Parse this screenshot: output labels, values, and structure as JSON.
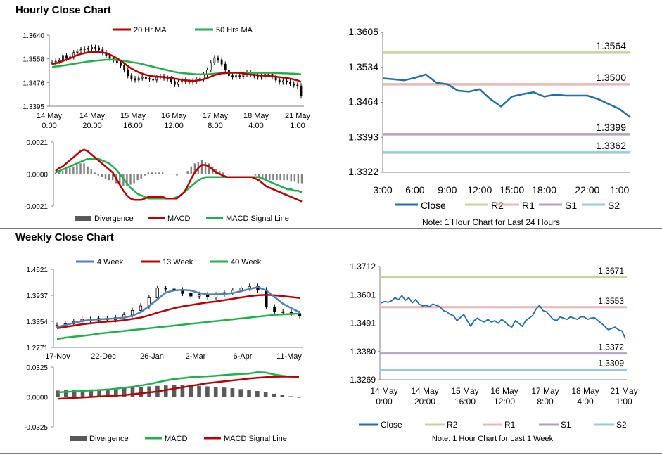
{
  "hourly_section": {
    "title": "Hourly Close Chart"
  },
  "weekly_section": {
    "title": "Weekly Close Chart"
  },
  "colors": {
    "ma20": "#c00000",
    "ma50": "#1fb24a",
    "candle": "#000000",
    "divergence": "#808080",
    "macd": "#c00000",
    "signal": "#1fb24a",
    "close": "#1f6fad",
    "r2": "#c3d69b",
    "r1": "#e6b9b8",
    "s1": "#b3a2c7",
    "s2": "#93cddd",
    "w4": "#4f81bd",
    "w13": "#c00000",
    "w40": "#1fb24a"
  },
  "chart_data": [
    {
      "id": "hourly-candles",
      "type": "candlestick",
      "legend": [
        "20 Hr MA",
        "50 Hrs MA"
      ],
      "y_ticks": [
        "1.3640",
        "1.3558",
        "1.3476",
        "1.3395"
      ],
      "ylim": [
        1.3395,
        1.364
      ],
      "x_ticks": [
        [
          "14 May",
          "0:00"
        ],
        [
          "14 May",
          "20:00"
        ],
        [
          "15 May",
          "16:00"
        ],
        [
          "16 May",
          "12:00"
        ],
        [
          "17 May",
          "8:00"
        ],
        [
          "18 May",
          "4:00"
        ],
        [
          "21 May",
          "1:00"
        ]
      ],
      "close": [
        1.3545,
        1.355,
        1.3553,
        1.357,
        1.356,
        1.3565,
        1.358,
        1.3585,
        1.359,
        1.3592,
        1.3595,
        1.3598,
        1.3596,
        1.359,
        1.358,
        1.357,
        1.356,
        1.3555,
        1.3545,
        1.3535,
        1.352,
        1.35,
        1.349,
        1.3485,
        1.3492,
        1.3496,
        1.349,
        1.3488,
        1.3485,
        1.3495,
        1.3498,
        1.3492,
        1.349,
        1.348,
        1.347,
        1.3478,
        1.3485,
        1.348,
        1.3478,
        1.3482,
        1.3488,
        1.349,
        1.3505,
        1.352,
        1.3545,
        1.3562,
        1.3555,
        1.354,
        1.352,
        1.35,
        1.3495,
        1.35,
        1.3498,
        1.3505,
        1.351,
        1.3505,
        1.35,
        1.3495,
        1.3498,
        1.3505,
        1.3505,
        1.3495,
        1.3485,
        1.3478,
        1.3482,
        1.3478,
        1.3472,
        1.3468,
        1.3465,
        1.343
      ],
      "ma20": [
        1.354,
        1.3543,
        1.3546,
        1.3551,
        1.3556,
        1.356,
        1.3566,
        1.3571,
        1.3575,
        1.3578,
        1.3581,
        1.3582,
        1.3582,
        1.3581,
        1.358,
        1.3578,
        1.3573,
        1.3567,
        1.356,
        1.3552,
        1.3543,
        1.3533,
        1.3525,
        1.3518,
        1.3512,
        1.3507,
        1.3503,
        1.35,
        1.3498,
        1.3497,
        1.3496,
        1.3495,
        1.3494,
        1.3493,
        1.349,
        1.3488,
        1.3486,
        1.3484,
        1.3483,
        1.3482,
        1.3483,
        1.3485,
        1.3488,
        1.3492,
        1.3497,
        1.3502,
        1.3506,
        1.3508,
        1.3509,
        1.351,
        1.3511,
        1.3511,
        1.351,
        1.3508,
        1.3506,
        1.3504,
        1.3503,
        1.3502,
        1.3501,
        1.35,
        1.3499,
        1.3498,
        1.3497,
        1.3495,
        1.3494,
        1.3492,
        1.349,
        1.3487,
        1.3484,
        1.3478
      ],
      "ma50": [
        1.353,
        1.3532,
        1.3533,
        1.3535,
        1.3537,
        1.3539,
        1.3541,
        1.3543,
        1.3545,
        1.3547,
        1.3549,
        1.355,
        1.3552,
        1.3553,
        1.3554,
        1.3555,
        1.3555,
        1.3555,
        1.3554,
        1.3553,
        1.3551,
        1.3549,
        1.3547,
        1.3545,
        1.3543,
        1.354,
        1.3537,
        1.3534,
        1.3531,
        1.3528,
        1.3525,
        1.3522,
        1.3519,
        1.3516,
        1.3513,
        1.3511,
        1.3509,
        1.3508,
        1.3507,
        1.3506,
        1.3505,
        1.3505,
        1.3505,
        1.3505,
        1.3506,
        1.3507,
        1.3508,
        1.3509,
        1.351,
        1.351,
        1.351,
        1.351,
        1.351,
        1.351,
        1.351,
        1.351,
        1.351,
        1.351,
        1.351,
        1.351,
        1.351,
        1.351,
        1.3509,
        1.3509,
        1.3508,
        1.3508,
        1.3507,
        1.3507,
        1.3506,
        1.3505
      ]
    },
    {
      "id": "hourly-macd",
      "type": "bar+line",
      "legend": [
        "Divergence",
        "MACD",
        "MACD Signal Line"
      ],
      "y_ticks": [
        "0.0021",
        "0.0000",
        "-0.0021"
      ],
      "ylim": [
        -0.0021,
        0.0021
      ],
      "macd": [
        0.0002,
        0.0004,
        0.0005,
        0.0007,
        0.0009,
        0.0011,
        0.0013,
        0.0015,
        0.0016,
        0.0015,
        0.0013,
        0.0011,
        0.0009,
        0.0007,
        0.0005,
        0.0003,
        0.0001,
        -0.0003,
        -0.0007,
        -0.0011,
        -0.0014,
        -0.0016,
        -0.0017,
        -0.0017,
        -0.0017,
        -0.0016,
        -0.0015,
        -0.0015,
        -0.0015,
        -0.0015,
        -0.0015,
        -0.0016,
        -0.0016,
        -0.0016,
        -0.0016,
        -0.0014,
        -0.0012,
        -0.0008,
        -0.0003,
        0.0001,
        0.0004,
        0.0006,
        0.0006,
        0.0005,
        0.0003,
        0.0001,
        0.0,
        -0.0001,
        -0.0002,
        -0.0002,
        -0.0002,
        -0.0002,
        -0.0002,
        -0.0002,
        -0.0002,
        -0.0002,
        -0.0003,
        -0.0004,
        -0.0006,
        -0.0008,
        -0.0009,
        -0.001,
        -0.0011,
        -0.0012,
        -0.0013,
        -0.0014,
        -0.0015,
        -0.0016,
        -0.0017,
        -0.0018
      ],
      "signal": [
        0.0001,
        0.0002,
        0.0003,
        0.0004,
        0.0005,
        0.0006,
        0.0007,
        0.0008,
        0.0009,
        0.001,
        0.001,
        0.001,
        0.001,
        0.0009,
        0.0008,
        0.0007,
        0.0005,
        0.0003,
        0.0,
        -0.0003,
        -0.0006,
        -0.0009,
        -0.0011,
        -0.0013,
        -0.0014,
        -0.0015,
        -0.0016,
        -0.0016,
        -0.0016,
        -0.0016,
        -0.0016,
        -0.0016,
        -0.0016,
        -0.0016,
        -0.0015,
        -0.0014,
        -0.0012,
        -0.001,
        -0.0008,
        -0.0006,
        -0.0004,
        -0.0003,
        -0.0002,
        -0.0002,
        -0.0002,
        -0.0002,
        -0.0002,
        -0.0002,
        -0.0002,
        -0.0002,
        -0.0002,
        -0.0002,
        -0.0002,
        -0.0002,
        -0.0002,
        -0.0002,
        -0.0002,
        -0.0002,
        -0.0003,
        -0.0004,
        -0.0005,
        -0.0006,
        -0.0007,
        -0.0008,
        -0.0009,
        -0.001,
        -0.001,
        -0.0011,
        -0.0011,
        -0.0012
      ]
    },
    {
      "id": "hourly-close",
      "type": "line",
      "legend": [
        "Close",
        "R2",
        "R1",
        "S1",
        "S2"
      ],
      "note": "Note: 1 Hour Chart for Last 24 Hours",
      "y_ticks": [
        "1.3605",
        "1.3534",
        "1.3464",
        "1.3393",
        "1.3322"
      ],
      "ylim": [
        1.3322,
        1.3605
      ],
      "x_ticks": [
        "3:00",
        "6:00",
        "9:00",
        "12:00",
        "15:00",
        "18:00",
        "22:00",
        "1:00"
      ],
      "x_tick_hours": [
        3,
        6,
        9,
        12,
        15,
        18,
        22,
        25
      ],
      "x_hours": [
        3,
        4,
        5,
        6,
        7,
        8,
        9,
        10,
        11,
        12,
        13,
        14,
        15,
        16,
        17,
        18,
        19,
        20,
        21,
        22,
        23,
        24,
        25,
        26
      ],
      "close": [
        1.3512,
        1.351,
        1.3508,
        1.3513,
        1.352,
        1.3503,
        1.35,
        1.3487,
        1.3485,
        1.349,
        1.347,
        1.3455,
        1.3475,
        1.348,
        1.3484,
        1.3475,
        1.3479,
        1.3477,
        1.3477,
        1.3477,
        1.347,
        1.346,
        1.345,
        1.3433
      ],
      "levels": [
        {
          "name": "R2",
          "value": 1.3564,
          "label": "1.3564"
        },
        {
          "name": "R1",
          "value": 1.35,
          "label": "1.3500"
        },
        {
          "name": "S1",
          "value": 1.3399,
          "label": "1.3399"
        },
        {
          "name": "S2",
          "value": 1.3362,
          "label": "1.3362"
        }
      ]
    },
    {
      "id": "weekly-candles",
      "type": "candlestick",
      "legend": [
        "4 Week",
        "13 Week",
        "40 Week"
      ],
      "y_ticks": [
        "1.4521",
        "1.3937",
        "1.3354",
        "1.2771"
      ],
      "ylim": [
        1.2771,
        1.4521
      ],
      "x_ticks": [
        "17-Nov",
        "22-Dec",
        "26-Jan",
        "2-Mar",
        "6-Apr",
        "11-May"
      ],
      "close": [
        1.327,
        1.33,
        1.335,
        1.34,
        1.338,
        1.342,
        1.339,
        1.344,
        1.35,
        1.36,
        1.37,
        1.388,
        1.41,
        1.408,
        1.406,
        1.398,
        1.392,
        1.396,
        1.39,
        1.395,
        1.4,
        1.405,
        1.41,
        1.414,
        1.406,
        1.368,
        1.357,
        1.356,
        1.353,
        1.348
      ],
      "w4": [
        1.323,
        1.327,
        1.332,
        1.336,
        1.339,
        1.34,
        1.341,
        1.342,
        1.344,
        1.348,
        1.356,
        1.37,
        1.385,
        1.4,
        1.405,
        1.406,
        1.405,
        1.399,
        1.396,
        1.396,
        1.397,
        1.399,
        1.403,
        1.408,
        1.412,
        1.405,
        1.39,
        1.375,
        1.365,
        1.356
      ],
      "w13": [
        1.32,
        1.323,
        1.326,
        1.329,
        1.331,
        1.333,
        1.335,
        1.336,
        1.338,
        1.341,
        1.344,
        1.349,
        1.355,
        1.36,
        1.365,
        1.369,
        1.372,
        1.375,
        1.378,
        1.38,
        1.383,
        1.386,
        1.389,
        1.392,
        1.394,
        1.395,
        1.394,
        1.392,
        1.39,
        1.388
      ],
      "w40": [
        1.296,
        1.299,
        1.301,
        1.303,
        1.305,
        1.308,
        1.31,
        1.312,
        1.314,
        1.316,
        1.318,
        1.32,
        1.322,
        1.324,
        1.326,
        1.328,
        1.33,
        1.332,
        1.334,
        1.336,
        1.338,
        1.34,
        1.342,
        1.344,
        1.346,
        1.348,
        1.35,
        1.351,
        1.352,
        1.353
      ]
    },
    {
      "id": "weekly-macd",
      "type": "bar+line",
      "legend": [
        "Divergence",
        "MACD",
        "MACD Signal Line"
      ],
      "y_ticks": [
        "0.0325",
        "0.0000",
        "-0.0325"
      ],
      "ylim": [
        -0.0325,
        0.0325
      ],
      "divergence": [
        0.007,
        0.0075,
        0.0078,
        0.008,
        0.0082,
        0.0085,
        0.009,
        0.0095,
        0.01,
        0.0105,
        0.011,
        0.0115,
        0.012,
        0.0125,
        0.0128,
        0.013,
        0.0128,
        0.0122,
        0.0115,
        0.011,
        0.0102,
        0.0095,
        0.0085,
        0.0075,
        0.0065,
        0.005,
        0.0035,
        0.002,
        0.0008,
        -0.0008
      ],
      "macd": [
        0.005,
        0.0055,
        0.006,
        0.0065,
        0.007,
        0.0075,
        0.008,
        0.009,
        0.01,
        0.011,
        0.0125,
        0.014,
        0.016,
        0.018,
        0.0195,
        0.0205,
        0.0215,
        0.022,
        0.0225,
        0.023,
        0.0238,
        0.0245,
        0.025,
        0.0255,
        0.027,
        0.0265,
        0.0245,
        0.023,
        0.022,
        0.021
      ],
      "signal": [
        -0.002,
        -0.0015,
        -0.001,
        -0.0005,
        0.0,
        0.0005,
        0.001,
        0.0015,
        0.002,
        0.003,
        0.004,
        0.005,
        0.006,
        0.0075,
        0.009,
        0.0105,
        0.012,
        0.0135,
        0.015,
        0.016,
        0.017,
        0.018,
        0.019,
        0.02,
        0.0208,
        0.0215,
        0.022,
        0.0222,
        0.0222,
        0.022
      ]
    },
    {
      "id": "weekly-close",
      "type": "line",
      "legend": [
        "Close",
        "R2",
        "R1",
        "S1",
        "S2"
      ],
      "note": "Note: 1 Hour Chart for Last 1 Week",
      "y_ticks": [
        "1.3712",
        "1.3601",
        "1.3491",
        "1.3380",
        "1.3269"
      ],
      "ylim": [
        1.3269,
        1.3712
      ],
      "x_ticks": [
        [
          "14 May",
          "0:00"
        ],
        [
          "14 May",
          "20:00"
        ],
        [
          "15 May",
          "16:00"
        ],
        [
          "16 May",
          "12:00"
        ],
        [
          "17 May",
          "8:00"
        ],
        [
          "18 May",
          "4:00"
        ],
        [
          "21 May",
          "1:00"
        ]
      ],
      "close": [
        1.357,
        1.3575,
        1.3572,
        1.3578,
        1.359,
        1.3582,
        1.3598,
        1.358,
        1.359,
        1.357,
        1.3583,
        1.3565,
        1.3558,
        1.356,
        1.3555,
        1.3565,
        1.356,
        1.3555,
        1.354,
        1.3535,
        1.3525,
        1.352,
        1.35,
        1.3512,
        1.3525,
        1.35,
        1.3478,
        1.35,
        1.351,
        1.35,
        1.3495,
        1.3505,
        1.3495,
        1.35,
        1.349,
        1.3505,
        1.3495,
        1.3482,
        1.3475,
        1.35,
        1.349,
        1.3478,
        1.35,
        1.351,
        1.352,
        1.3545,
        1.356,
        1.354,
        1.3535,
        1.352,
        1.3505,
        1.35,
        1.3515,
        1.351,
        1.3505,
        1.3515,
        1.351,
        1.3505,
        1.3515,
        1.3515,
        1.3505,
        1.351,
        1.3512,
        1.35,
        1.349,
        1.3478,
        1.3465,
        1.347,
        1.3475,
        1.3465,
        1.346,
        1.343
      ],
      "levels": [
        {
          "name": "R2",
          "value": 1.3671,
          "label": "1.3671"
        },
        {
          "name": "R1",
          "value": 1.3553,
          "label": "1.3553"
        },
        {
          "name": "S1",
          "value": 1.3372,
          "label": "1.3372"
        },
        {
          "name": "S2",
          "value": 1.3309,
          "label": "1.3309"
        }
      ]
    }
  ]
}
